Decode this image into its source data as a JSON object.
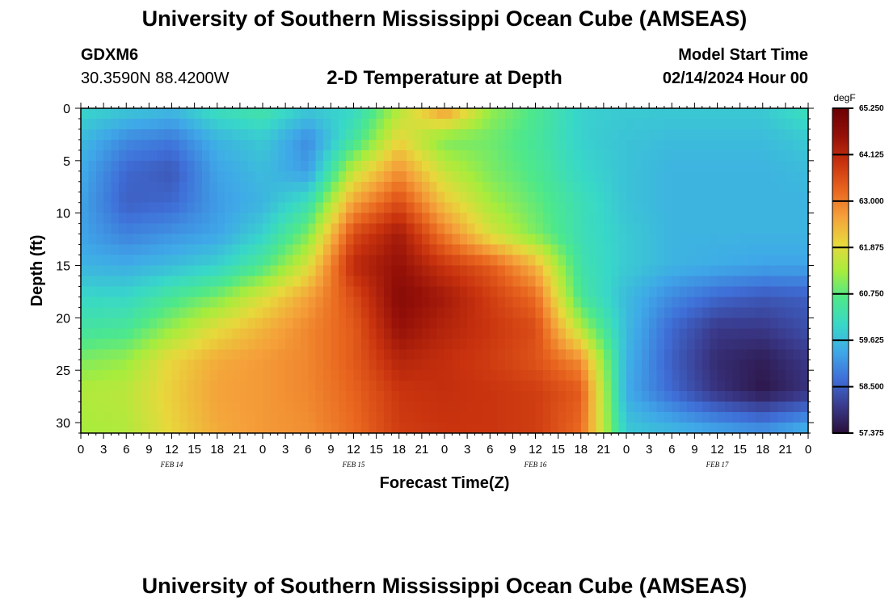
{
  "header": {
    "title": "University of Southern Mississippi Ocean Cube (AMSEAS)",
    "station_id": "GDXM6",
    "station_coords": "30.3590N  88.4200W",
    "plot_title": "2-D Temperature at Depth",
    "model_start_label": "Model Start Time",
    "model_start_value": "02/14/2024 Hour 00"
  },
  "footer": {
    "title": "University of Southern Mississippi Ocean Cube (AMSEAS)"
  },
  "chart_data": {
    "type": "heatmap",
    "title": "2-D Temperature at Depth",
    "xlabel": "Forecast Time(Z)",
    "ylabel": "Depth (ft)",
    "x_hours_range": [
      0,
      96
    ],
    "ylim": [
      0,
      31
    ],
    "y_inverted": true,
    "x_tick_labels": [
      "0",
      "3",
      "6",
      "9",
      "12",
      "15",
      "18",
      "21",
      "0",
      "3",
      "6",
      "9",
      "12",
      "15",
      "18",
      "21",
      "0",
      "3",
      "6",
      "9",
      "12",
      "15",
      "18",
      "21",
      "0",
      "3",
      "6",
      "9",
      "12",
      "15",
      "18",
      "21",
      "0"
    ],
    "y_ticks": [
      0,
      5,
      10,
      15,
      20,
      25,
      30
    ],
    "day_labels": [
      {
        "hour": 12,
        "label": "FEB 14"
      },
      {
        "hour": 36,
        "label": "FEB 15"
      },
      {
        "hour": 60,
        "label": "FEB 16"
      },
      {
        "hour": 84,
        "label": "FEB 17"
      }
    ],
    "colorbar": {
      "unit": "degF",
      "min": 57.375,
      "max": 65.25,
      "tick_values": [
        57.375,
        58.5,
        59.625,
        60.75,
        61.875,
        63.0,
        64.125,
        65.25
      ],
      "tick_labels": [
        "57.375",
        "58.500",
        "59.625",
        "60.750",
        "61.875",
        "63.000",
        "64.125",
        "65.250"
      ],
      "colors": [
        "#2a0f3a",
        "#3a3a8c",
        "#3f6fd8",
        "#3fa8e8",
        "#38d8c8",
        "#4ee88a",
        "#a8ec3c",
        "#e8d83c",
        "#f5a03a",
        "#e8641e",
        "#c8320e",
        "#941008",
        "#6a0004"
      ]
    },
    "grid_hours": [
      0,
      6,
      12,
      18,
      24,
      30,
      36,
      42,
      48,
      54,
      60,
      66,
      72,
      78,
      84,
      90,
      96
    ],
    "grid_depths": [
      0,
      3,
      6,
      9,
      12,
      15,
      18,
      21,
      24,
      27,
      31
    ],
    "temperature_degF": [
      [
        60.0,
        59.8,
        59.6,
        60.2,
        60.4,
        59.8,
        60.0,
        61.4,
        62.8,
        61.2,
        60.6,
        59.9,
        59.8,
        59.8,
        59.8,
        59.8,
        60.2
      ],
      [
        59.6,
        59.0,
        58.8,
        59.5,
        59.8,
        59.0,
        60.4,
        62.0,
        61.0,
        60.9,
        60.5,
        59.9,
        59.7,
        59.6,
        59.6,
        59.6,
        59.8
      ],
      [
        59.4,
        58.6,
        58.4,
        59.3,
        59.6,
        59.2,
        61.6,
        62.8,
        61.6,
        61.0,
        60.6,
        60.0,
        59.7,
        59.5,
        59.5,
        59.5,
        59.6
      ],
      [
        59.3,
        58.5,
        58.6,
        59.2,
        59.5,
        60.2,
        62.6,
        63.6,
        62.2,
        61.3,
        60.8,
        60.2,
        59.7,
        59.5,
        59.5,
        59.5,
        59.5
      ],
      [
        59.3,
        58.9,
        59.1,
        59.3,
        59.9,
        61.0,
        63.6,
        64.4,
        63.0,
        61.8,
        61.0,
        60.2,
        59.8,
        59.5,
        59.5,
        59.5,
        59.5
      ],
      [
        59.5,
        59.4,
        59.6,
        59.9,
        60.6,
        61.8,
        64.1,
        64.6,
        63.9,
        63.4,
        62.4,
        60.3,
        59.8,
        59.5,
        59.4,
        59.3,
        59.3
      ],
      [
        60.0,
        60.0,
        60.5,
        61.0,
        61.8,
        62.6,
        63.6,
        64.8,
        64.4,
        63.8,
        63.2,
        60.5,
        59.6,
        59.0,
        58.6,
        58.4,
        58.5
      ],
      [
        60.4,
        60.5,
        61.2,
        61.9,
        62.4,
        62.9,
        63.4,
        64.6,
        64.2,
        63.9,
        63.6,
        61.4,
        59.6,
        58.6,
        58.0,
        58.0,
        58.3
      ],
      [
        61.0,
        61.2,
        62.0,
        62.5,
        62.7,
        62.9,
        63.4,
        64.2,
        64.0,
        63.8,
        63.5,
        62.8,
        59.5,
        58.5,
        57.8,
        57.6,
        58.0
      ],
      [
        61.4,
        61.5,
        62.1,
        62.6,
        62.7,
        62.9,
        63.3,
        63.9,
        64.0,
        63.9,
        63.8,
        63.4,
        59.4,
        58.6,
        57.9,
        57.5,
        57.9
      ],
      [
        61.3,
        61.4,
        62.0,
        62.5,
        62.7,
        62.8,
        63.2,
        63.8,
        63.9,
        63.9,
        63.8,
        63.2,
        59.8,
        59.6,
        59.4,
        59.2,
        59.6
      ]
    ]
  }
}
